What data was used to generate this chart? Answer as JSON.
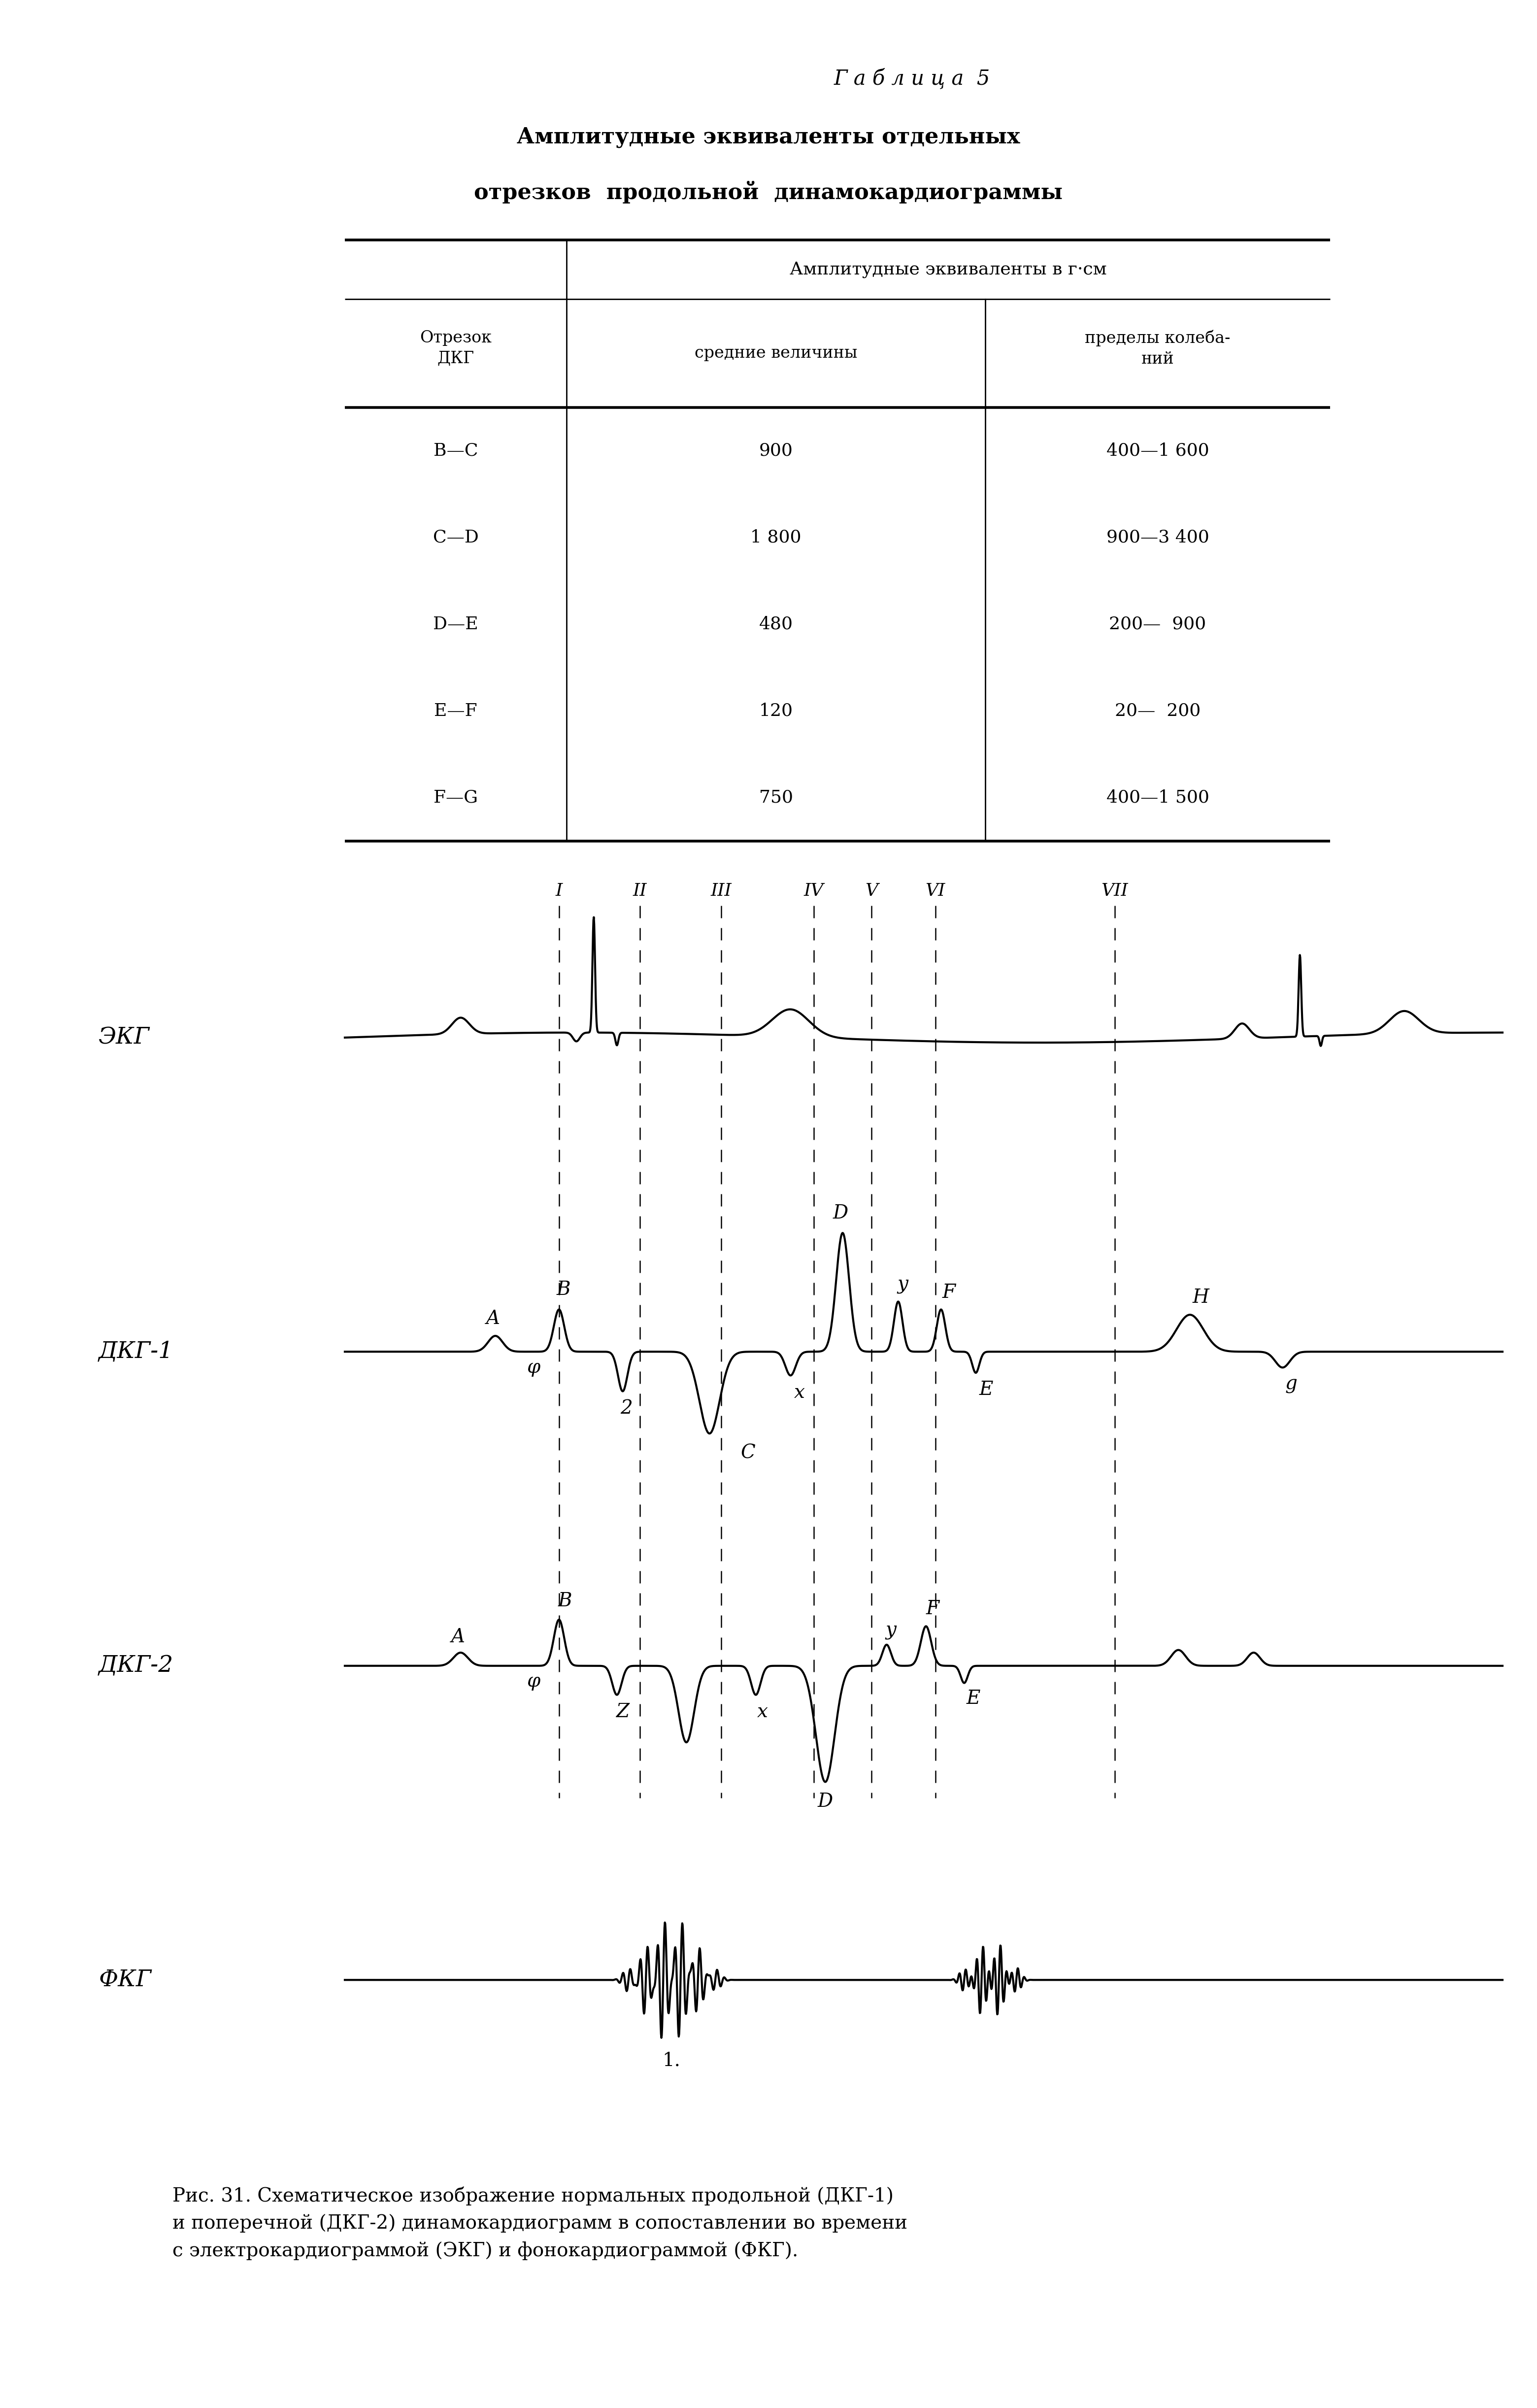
{
  "table_title1": "Г а б л и ц а  5",
  "table_title2": "Амплитудные эквиваленты отдельных",
  "table_title3": "отрезков  продольной  динамокардиограммы",
  "col_header1": "Амплитудные эквиваленты в г·см",
  "col_subh1": "средние величины",
  "col_subh2": "пределы колеба-\nний",
  "col_h0": "Отрезок\nДКГ",
  "rows": [
    [
      "В—С",
      "900",
      "400—1 600"
    ],
    [
      "С—D",
      "1 800",
      "900—3 400"
    ],
    [
      "D—Е",
      "480",
      "200—  900"
    ],
    [
      "Е—F",
      "120",
      "20—  200"
    ],
    [
      "F—G",
      "750",
      "400—1 500"
    ]
  ],
  "section_labels": [
    "I",
    "II",
    "III",
    "IV",
    "V",
    "VI",
    "VII"
  ],
  "caption_bold": "Рис. 31.",
  "caption": " Схематическое изображение нормальных продольной (ДКГ-1)\nи поперечной (ДКГ-2) динамокардиограмм в сопоставлении во времени\nс электрокардиограммой (ЭКГ) и фонокардиограммой (ФКГ).",
  "bg_color": "#ffffff"
}
